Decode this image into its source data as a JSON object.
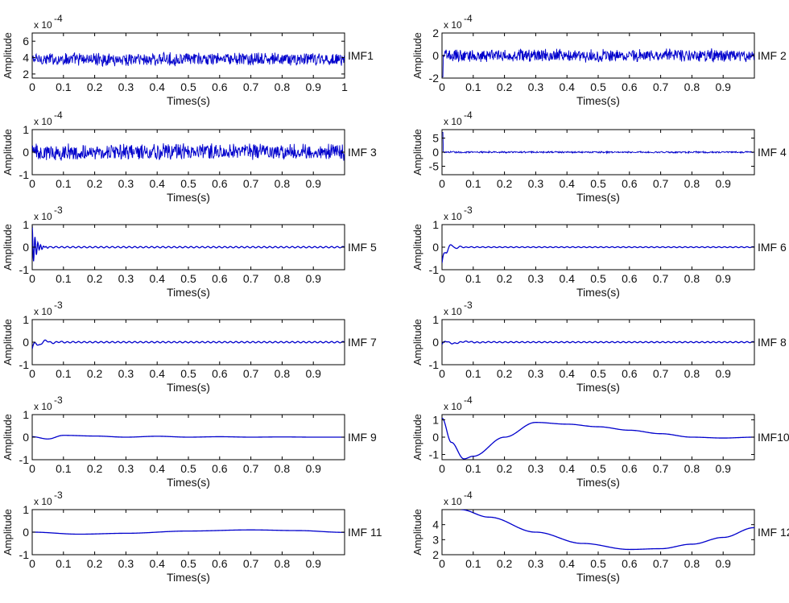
{
  "chart_data": [
    {
      "type": "line",
      "name": "IMF1",
      "xlabel": "Times(s)",
      "ylabel": "Amplitude",
      "exponent_base": "x 10",
      "exponent_power": "-4",
      "xlim": [
        0,
        1
      ],
      "ylim": [
        1.5,
        7
      ],
      "xticks": [
        "0",
        "0.1",
        "0.2",
        "0.3",
        "0.4",
        "0.5",
        "0.6",
        "0.7",
        "0.8",
        "0.9",
        "1"
      ],
      "yticks": [
        "2",
        "4",
        "6"
      ],
      "series": [
        {
          "name": "IMF1",
          "shape": "noise",
          "center": 3.8,
          "amplitude": 0.9
        }
      ]
    },
    {
      "type": "line",
      "name": "IMF 2",
      "xlabel": "Times(s)",
      "ylabel": "Amplitude",
      "exponent_base": "x 10",
      "exponent_power": "-4",
      "xlim": [
        0,
        1
      ],
      "ylim": [
        -2,
        2
      ],
      "xticks": [
        "0",
        "0.1",
        "0.2",
        "0.3",
        "0.4",
        "0.5",
        "0.6",
        "0.7",
        "0.8",
        "0.9"
      ],
      "yticks": [
        "-2",
        "0",
        "2"
      ],
      "series": [
        {
          "name": "IMF 2",
          "shape": "noise",
          "center": 0,
          "amplitude": 0.65,
          "initial_spike": -1.9
        }
      ]
    },
    {
      "type": "line",
      "name": "IMF 3",
      "xlabel": "Times(s)",
      "ylabel": "Amplitude",
      "exponent_base": "x 10",
      "exponent_power": "-4",
      "xlim": [
        0,
        1
      ],
      "ylim": [
        -1,
        1
      ],
      "xticks": [
        "0",
        "0.1",
        "0.2",
        "0.3",
        "0.4",
        "0.5",
        "0.6",
        "0.7",
        "0.8",
        "0.9"
      ],
      "yticks": [
        "-1",
        "0",
        "1"
      ],
      "series": [
        {
          "name": "IMF 3",
          "shape": "noise",
          "center": 0,
          "amplitude": 0.42
        }
      ]
    },
    {
      "type": "line",
      "name": "IMF 4",
      "xlabel": "Times(s)",
      "ylabel": "Amplitude",
      "exponent_base": "x 10",
      "exponent_power": "-4",
      "xlim": [
        0,
        1
      ],
      "ylim": [
        -8,
        8
      ],
      "xticks": [
        "0",
        "0.1",
        "0.2",
        "0.3",
        "0.4",
        "0.5",
        "0.6",
        "0.7",
        "0.8",
        "0.9"
      ],
      "yticks": [
        "-5",
        "0",
        "5"
      ],
      "series": [
        {
          "name": "IMF 4",
          "shape": "noise",
          "center": 0,
          "amplitude": 0.35,
          "initial_spike": 7
        }
      ]
    },
    {
      "type": "line",
      "name": "IMF 5",
      "xlabel": "Times(s)",
      "ylabel": "Amplitude",
      "exponent_base": "x 10",
      "exponent_power": "-3",
      "xlim": [
        0,
        1
      ],
      "ylim": [
        -1,
        1
      ],
      "xticks": [
        "0",
        "0.1",
        "0.2",
        "0.3",
        "0.4",
        "0.5",
        "0.6",
        "0.7",
        "0.8",
        "0.9"
      ],
      "yticks": [
        "-1",
        "0",
        "1"
      ],
      "series": [
        {
          "name": "IMF 5",
          "shape": "transient",
          "peak": 0.95,
          "decay": 0.012,
          "period": 0.009,
          "ripple": 0.03
        }
      ]
    },
    {
      "type": "line",
      "name": "IMF 6",
      "xlabel": "Times(s)",
      "ylabel": "Amplitude",
      "exponent_base": "x 10",
      "exponent_power": "-3",
      "xlim": [
        0,
        1
      ],
      "ylim": [
        -1,
        1
      ],
      "xticks": [
        "0",
        "0.1",
        "0.2",
        "0.3",
        "0.4",
        "0.5",
        "0.6",
        "0.7",
        "0.8",
        "0.9"
      ],
      "yticks": [
        "-1",
        "0",
        "1"
      ],
      "series": [
        {
          "name": "IMF 6",
          "shape": "transient",
          "peak": 0.5,
          "decay": 0.02,
          "period": 0.03,
          "ripple": 0.02,
          "dip": -0.7
        }
      ]
    },
    {
      "type": "line",
      "name": "IMF 7",
      "xlabel": "Times(s)",
      "ylabel": "Amplitude",
      "exponent_base": "x 10",
      "exponent_power": "-3",
      "xlim": [
        0,
        1
      ],
      "ylim": [
        -1,
        1
      ],
      "xticks": [
        "0",
        "0.1",
        "0.2",
        "0.3",
        "0.4",
        "0.5",
        "0.6",
        "0.7",
        "0.8",
        "0.9"
      ],
      "yticks": [
        "-1",
        "0",
        "1"
      ],
      "series": [
        {
          "name": "IMF 7",
          "shape": "transient",
          "peak": 0.3,
          "decay": 0.03,
          "period": 0.045,
          "ripple": 0.03,
          "dip": -0.3
        }
      ]
    },
    {
      "type": "line",
      "name": "IMF 8",
      "xlabel": "Times(s)",
      "ylabel": "Amplitude",
      "exponent_base": "x 10",
      "exponent_power": "-3",
      "xlim": [
        0,
        1
      ],
      "ylim": [
        -1,
        1
      ],
      "xticks": [
        "0",
        "0.1",
        "0.2",
        "0.3",
        "0.4",
        "0.5",
        "0.6",
        "0.7",
        "0.8",
        "0.9"
      ],
      "yticks": [
        "-1",
        "0",
        "1"
      ],
      "series": [
        {
          "name": "IMF 8",
          "shape": "transient",
          "peak": 0.12,
          "decay": 0.05,
          "period": 0.08,
          "ripple": 0.025,
          "dip": -0.1
        }
      ]
    },
    {
      "type": "line",
      "name": "IMF 9",
      "xlabel": "Times(s)",
      "ylabel": "Amplitude",
      "exponent_base": "x 10",
      "exponent_power": "-3",
      "xlim": [
        0,
        1
      ],
      "ylim": [
        -1,
        1
      ],
      "xticks": [
        "0",
        "0.1",
        "0.2",
        "0.3",
        "0.4",
        "0.5",
        "0.6",
        "0.7",
        "0.8",
        "0.9"
      ],
      "yticks": [
        "-1",
        "0",
        "1"
      ],
      "series": [
        {
          "name": "IMF 9",
          "shape": "slow",
          "points": [
            [
              0,
              0.02
            ],
            [
              0.05,
              -0.08
            ],
            [
              0.1,
              0.08
            ],
            [
              0.2,
              0.05
            ],
            [
              0.3,
              0.0
            ],
            [
              0.4,
              0.04
            ],
            [
              0.5,
              0.0
            ],
            [
              0.6,
              0.02
            ],
            [
              0.7,
              0.0
            ],
            [
              0.8,
              0.01
            ],
            [
              0.9,
              0.0
            ],
            [
              1,
              0.0
            ]
          ]
        }
      ]
    },
    {
      "type": "line",
      "name": "IMF10",
      "xlabel": "Times(s)",
      "ylabel": "Amplitude",
      "exponent_base": "x 10",
      "exponent_power": "-4",
      "xlim": [
        0,
        1
      ],
      "ylim": [
        -1.3,
        1.3
      ],
      "xticks": [
        "0",
        "0.1",
        "0.2",
        "0.3",
        "0.4",
        "0.5",
        "0.6",
        "0.7",
        "0.8",
        "0.9"
      ],
      "yticks": [
        "-1",
        "0",
        "1"
      ],
      "series": [
        {
          "name": "IMF10",
          "shape": "slow",
          "points": [
            [
              0,
              1.1
            ],
            [
              0.03,
              -0.3
            ],
            [
              0.07,
              -1.25
            ],
            [
              0.1,
              -1.1
            ],
            [
              0.2,
              0.0
            ],
            [
              0.3,
              0.85
            ],
            [
              0.4,
              0.75
            ],
            [
              0.5,
              0.6
            ],
            [
              0.6,
              0.4
            ],
            [
              0.7,
              0.2
            ],
            [
              0.8,
              0.0
            ],
            [
              0.9,
              -0.05
            ],
            [
              1,
              0.0
            ]
          ]
        }
      ]
    },
    {
      "type": "line",
      "name": "IMF 11",
      "xlabel": "Times(s)",
      "ylabel": "Amplitude",
      "exponent_base": "x 10",
      "exponent_power": "-3",
      "xlim": [
        0,
        1
      ],
      "ylim": [
        -1,
        1
      ],
      "xticks": [
        "0",
        "0.1",
        "0.2",
        "0.3",
        "0.4",
        "0.5",
        "0.6",
        "0.7",
        "0.8",
        "0.9"
      ],
      "yticks": [
        "-1",
        "0",
        "1"
      ],
      "series": [
        {
          "name": "IMF 11",
          "shape": "slow",
          "points": [
            [
              0,
              0.0
            ],
            [
              0.15,
              -0.09
            ],
            [
              0.3,
              -0.05
            ],
            [
              0.5,
              0.05
            ],
            [
              0.7,
              0.1
            ],
            [
              0.85,
              0.07
            ],
            [
              1,
              -0.01
            ]
          ]
        }
      ]
    },
    {
      "type": "line",
      "name": "IMF 12",
      "xlabel": "Times(s)",
      "ylabel": "Amplitude",
      "exponent_base": "x 10",
      "exponent_power": "-4",
      "xlim": [
        0,
        1
      ],
      "ylim": [
        2,
        5
      ],
      "xticks": [
        "0",
        "0.1",
        "0.2",
        "0.3",
        "0.4",
        "0.5",
        "0.6",
        "0.7",
        "0.8",
        "0.9"
      ],
      "yticks": [
        "2",
        "3",
        "4"
      ],
      "series": [
        {
          "name": "IMF 12",
          "shape": "slow",
          "points": [
            [
              0.06,
              5.0
            ],
            [
              0.15,
              4.5
            ],
            [
              0.3,
              3.5
            ],
            [
              0.45,
              2.75
            ],
            [
              0.6,
              2.35
            ],
            [
              0.7,
              2.4
            ],
            [
              0.8,
              2.7
            ],
            [
              0.9,
              3.15
            ],
            [
              1,
              3.8
            ]
          ]
        }
      ]
    }
  ],
  "style": {
    "line_color": "#0000cc",
    "axis_color": "#000000",
    "background": "#ffffff"
  }
}
